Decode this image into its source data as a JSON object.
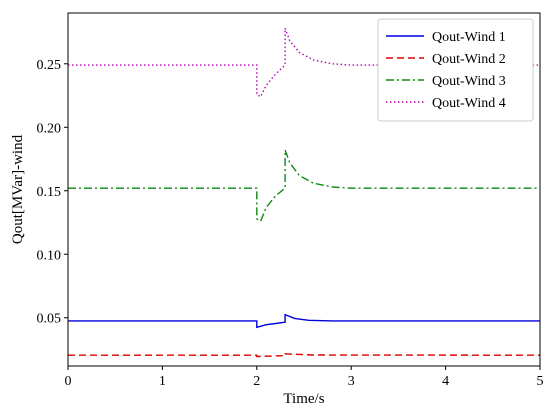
{
  "chart_data": {
    "type": "line",
    "xlabel": "Time/s",
    "ylabel": "Qout[MVar]-wind",
    "xlim": [
      0,
      5
    ],
    "ylim": [
      0.012,
      0.29
    ],
    "xticks": [
      0,
      1,
      2,
      3,
      4,
      5
    ],
    "xtick_labels": [
      "0",
      "1",
      "2",
      "3",
      "4",
      "5"
    ],
    "yticks": [
      0.05,
      0.1,
      0.15,
      0.2,
      0.25
    ],
    "ytick_labels": [
      "0.05",
      "0.10",
      "0.15",
      "0.20",
      "0.25"
    ],
    "grid": false,
    "legend_position": "top-right",
    "series": [
      {
        "name": "Qout-Wind 1",
        "color": "#0000dd",
        "dash": "solid",
        "x": [
          0,
          2.0,
          2.0,
          2.1,
          2.2,
          2.3,
          2.3,
          2.4,
          2.55,
          2.8,
          5
        ],
        "y": [
          0.0475,
          0.0475,
          0.0425,
          0.0445,
          0.0455,
          0.0465,
          0.0525,
          0.0495,
          0.048,
          0.0475,
          0.0475
        ]
      },
      {
        "name": "Qout-Wind 2",
        "color": "#dd0000",
        "dash": "dashed",
        "x": [
          0,
          2.0,
          2.0,
          2.3,
          2.3,
          2.6,
          5
        ],
        "y": [
          0.0205,
          0.0205,
          0.0195,
          0.0202,
          0.0215,
          0.0207,
          0.0205
        ]
      },
      {
        "name": "Qout-Wind 3",
        "color": "#118811",
        "dash": "dashdot",
        "x": [
          0,
          2.0,
          2.0,
          2.04,
          2.1,
          2.2,
          2.3,
          2.3,
          2.35,
          2.45,
          2.6,
          2.8,
          3.0,
          5
        ],
        "y": [
          0.152,
          0.152,
          0.128,
          0.126,
          0.137,
          0.146,
          0.152,
          0.182,
          0.172,
          0.162,
          0.156,
          0.153,
          0.152,
          0.152
        ]
      },
      {
        "name": "Qout-Wind 4",
        "color": "#bb00bb",
        "dash": "dotted",
        "x": [
          0,
          2.0,
          2.0,
          2.04,
          2.1,
          2.2,
          2.3,
          2.3,
          2.35,
          2.45,
          2.6,
          2.8,
          3.0,
          5
        ],
        "y": [
          0.249,
          0.249,
          0.226,
          0.224,
          0.233,
          0.242,
          0.249,
          0.278,
          0.268,
          0.259,
          0.253,
          0.25,
          0.249,
          0.249
        ]
      }
    ]
  }
}
